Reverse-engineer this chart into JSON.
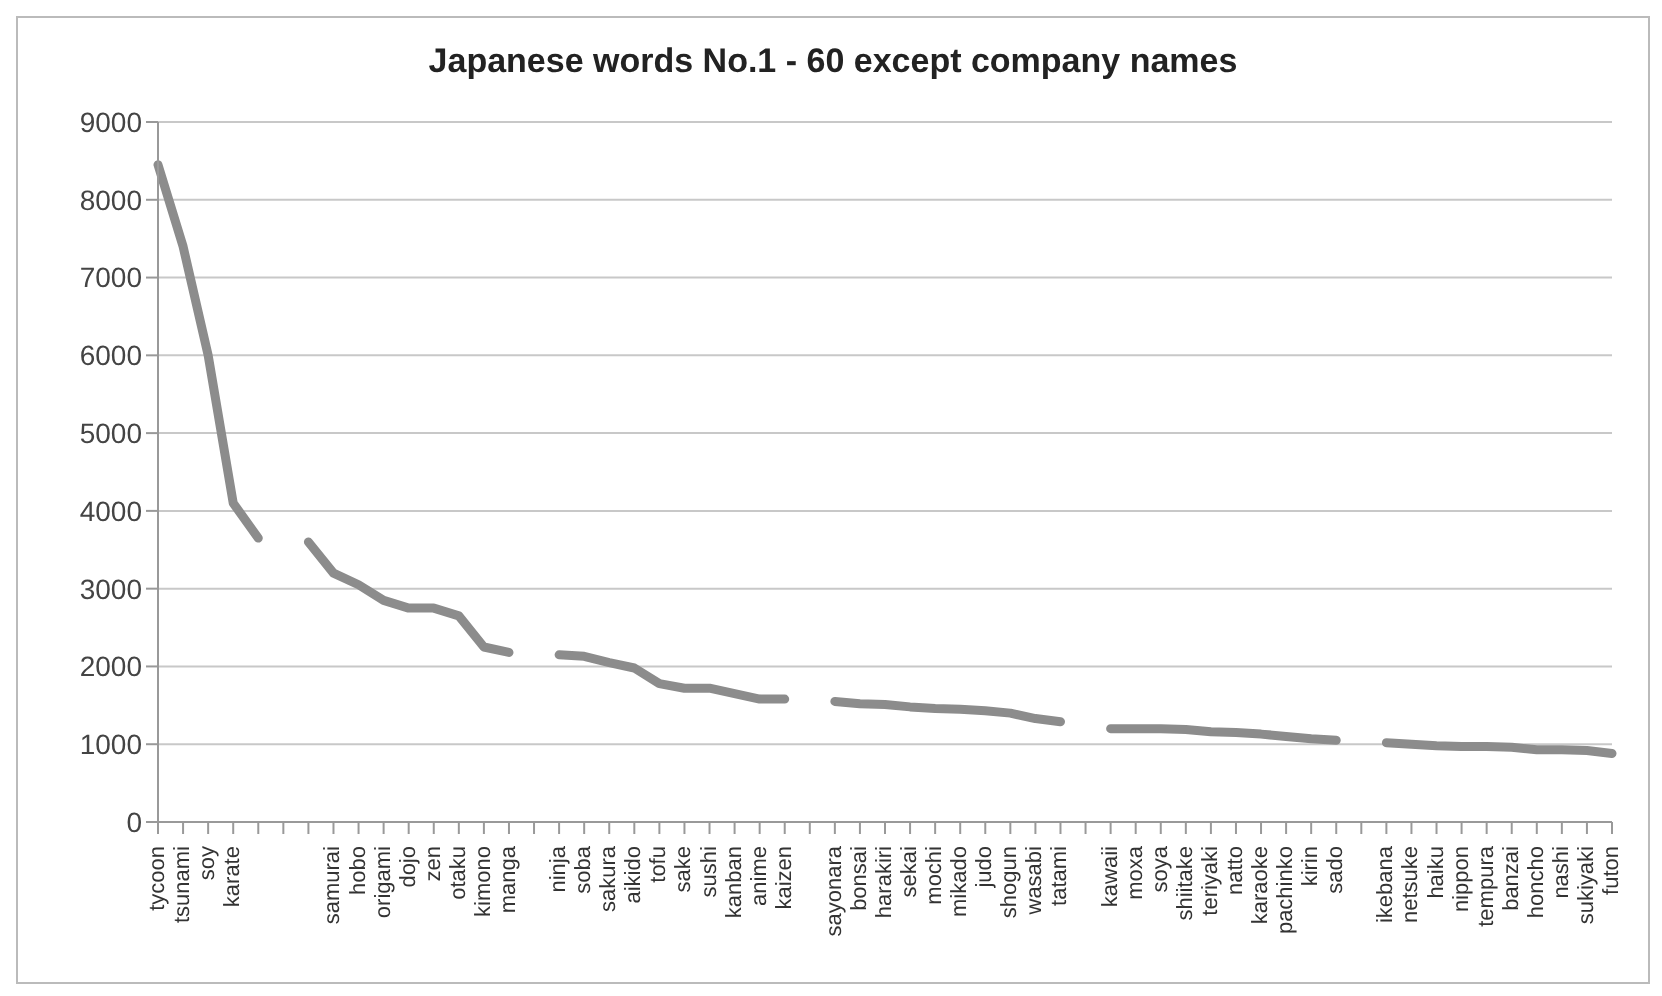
{
  "chart_data": {
    "type": "line",
    "title": "Japanese words  No.1 - 60 except company names",
    "categories": [
      "tycoon",
      "tsunami",
      "soy",
      "karate",
      null,
      null,
      null,
      "samurai",
      "hobo",
      "origami",
      "dojo",
      "zen",
      "otaku",
      "kimono",
      "manga",
      null,
      "ninja",
      "soba",
      "sakura",
      "aikido",
      "tofu",
      "sake",
      "sushi",
      "kanban",
      "anime",
      "kaizen",
      null,
      "sayonara",
      "bonsai",
      "harakiri",
      "sekai",
      "mochi",
      "mikado",
      "judo",
      "shogun",
      "wasabi",
      "tatami",
      null,
      "kawaii",
      "moxa",
      "soya",
      "shiitake",
      "teriyaki",
      "natto",
      "karaoke",
      "pachinko",
      "kirin",
      "sado",
      null,
      "ikebana",
      "netsuke",
      "haiku",
      "nippon",
      "tempura",
      "banzai",
      "honcho",
      "nashi",
      "sukiyaki",
      "futon"
    ],
    "series": [
      {
        "color": "#8c8c8c",
        "values": [
          8450,
          7400,
          6000,
          4100,
          3650,
          null,
          3600,
          3200,
          3050,
          2850,
          2750,
          2750,
          2650,
          2250,
          2180,
          null,
          2150,
          2130,
          2050,
          1980,
          1780,
          1720,
          1720,
          1650,
          1580,
          1580,
          null,
          1550,
          1520,
          1510,
          1480,
          1460,
          1450,
          1430,
          1400,
          1330,
          1290,
          null,
          1200,
          1200,
          1200,
          1190,
          1160,
          1150,
          1130,
          1100,
          1070,
          1050,
          null,
          1020,
          1000,
          980,
          970,
          970,
          960,
          930,
          930,
          920,
          880
        ]
      }
    ],
    "ylim": [
      0,
      9000
    ],
    "yticks": [
      0,
      1000,
      2000,
      3000,
      4000,
      5000,
      6000,
      7000,
      8000,
      9000
    ],
    "grid": "y",
    "legend": false,
    "marker": "none",
    "line_style": "solid"
  }
}
